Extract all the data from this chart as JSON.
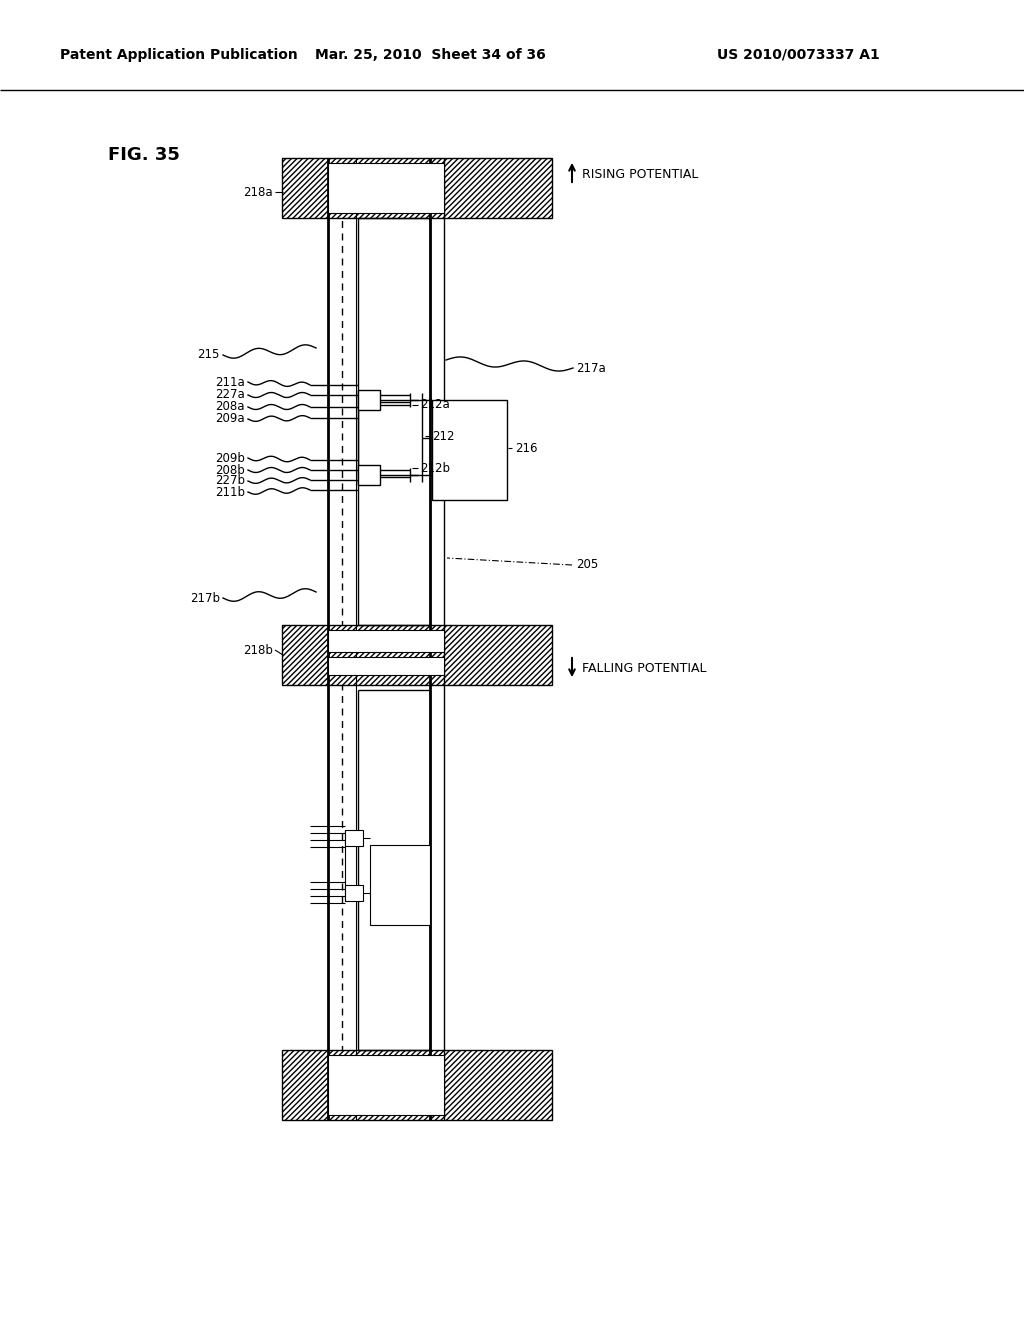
{
  "bg_color": "#ffffff",
  "header_left": "Patent Application Publication",
  "header_mid": "Mar. 25, 2010  Sheet 34 of 36",
  "header_right": "US 2010/0073337 A1",
  "fig_label": "FIG. 35",
  "rising": "RISING POTENTIAL",
  "falling": "FALLING POTENTIAL"
}
